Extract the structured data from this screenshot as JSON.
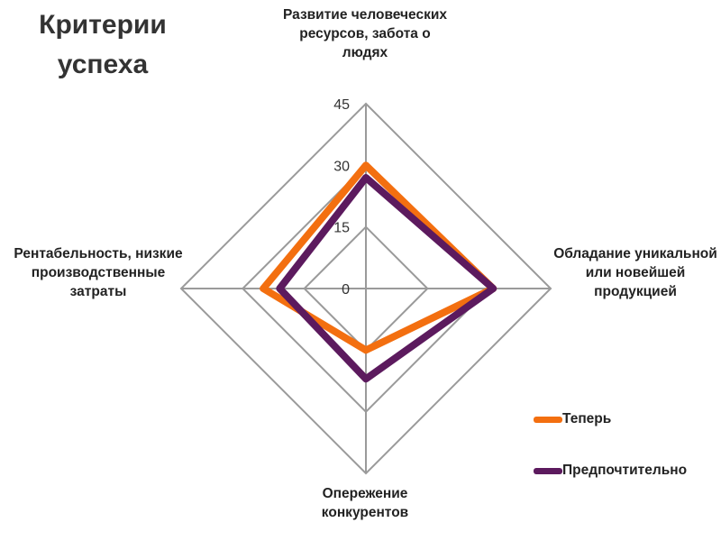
{
  "page": {
    "title": "Критерии успеха"
  },
  "chart_data": {
    "type": "radar",
    "title": "Критерии успеха",
    "axes": [
      "Развитие человеческих ресурсов, забота о людях",
      "Обладание уникальной или новейшей продукцией",
      "Опережение конкурентов",
      "Рентабельность, низкие производственные затраты"
    ],
    "range": [
      0,
      45
    ],
    "ticks": [
      0,
      15,
      30,
      45
    ],
    "tick_labels": [
      "0",
      "15",
      "30",
      "45"
    ],
    "gridlines": true,
    "legend_position": "right",
    "series": [
      {
        "name": "Теперь",
        "color": "#f36f10",
        "values": [
          30,
          31,
          15,
          25
        ]
      },
      {
        "name": "Предпочтительно",
        "color": "#5c1a5e",
        "values": [
          27,
          31,
          22,
          21
        ]
      }
    ]
  }
}
